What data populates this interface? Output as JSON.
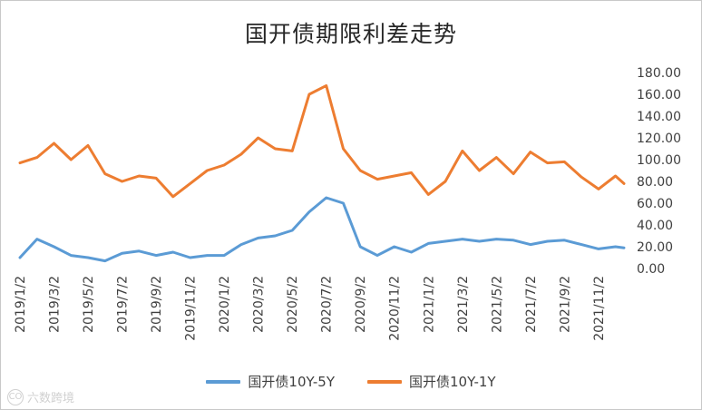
{
  "chart_data": {
    "type": "line",
    "title": "国开债期限利差走势",
    "xlabel": "",
    "ylabel": "",
    "ylim": [
      0,
      180
    ],
    "ytick_labels": [
      "0.00",
      "20.00",
      "40.00",
      "60.00",
      "80.00",
      "100.00",
      "120.00",
      "140.00",
      "160.00",
      "180.00"
    ],
    "ytick_values": [
      0,
      20,
      40,
      60,
      80,
      100,
      120,
      140,
      160,
      180
    ],
    "xtick_labels": [
      "2019/1/2",
      "2019/3/2",
      "2019/5/2",
      "2019/7/2",
      "2019/9/2",
      "2019/11/2",
      "2020/1/2",
      "2020/3/2",
      "2020/5/2",
      "2020/7/2",
      "2020/9/2",
      "2020/11/2",
      "2021/1/2",
      "2021/3/2",
      "2021/5/2",
      "2021/7/2",
      "2021/9/2",
      "2021/11/2"
    ],
    "x_months": [
      0,
      1,
      2,
      3,
      4,
      5,
      6,
      7,
      8,
      9,
      10,
      11,
      12,
      13,
      14,
      15,
      16,
      17,
      18,
      19,
      20,
      21,
      22,
      23,
      24,
      25,
      26,
      27,
      28,
      29,
      30,
      31,
      32,
      33,
      34,
      35,
      35.5
    ],
    "series": [
      {
        "name": "国开债10Y-5Y",
        "color": "#5b9bd5",
        "values": [
          10,
          27,
          20,
          12,
          10,
          7,
          14,
          16,
          12,
          15,
          10,
          12,
          12,
          22,
          28,
          30,
          35,
          52,
          65,
          60,
          20,
          12,
          20,
          15,
          23,
          25,
          27,
          25,
          27,
          26,
          22,
          25,
          26,
          22,
          18,
          20,
          19
        ]
      },
      {
        "name": "国开债10Y-1Y",
        "color": "#ed7d31",
        "values": [
          97,
          102,
          115,
          100,
          113,
          87,
          80,
          85,
          83,
          66,
          78,
          90,
          95,
          105,
          120,
          110,
          108,
          160,
          168,
          110,
          90,
          82,
          85,
          88,
          68,
          80,
          108,
          90,
          102,
          87,
          107,
          97,
          98,
          84,
          73,
          85,
          78
        ]
      }
    ]
  },
  "watermark": {
    "text": "六数跨境",
    "mark": "CO"
  }
}
